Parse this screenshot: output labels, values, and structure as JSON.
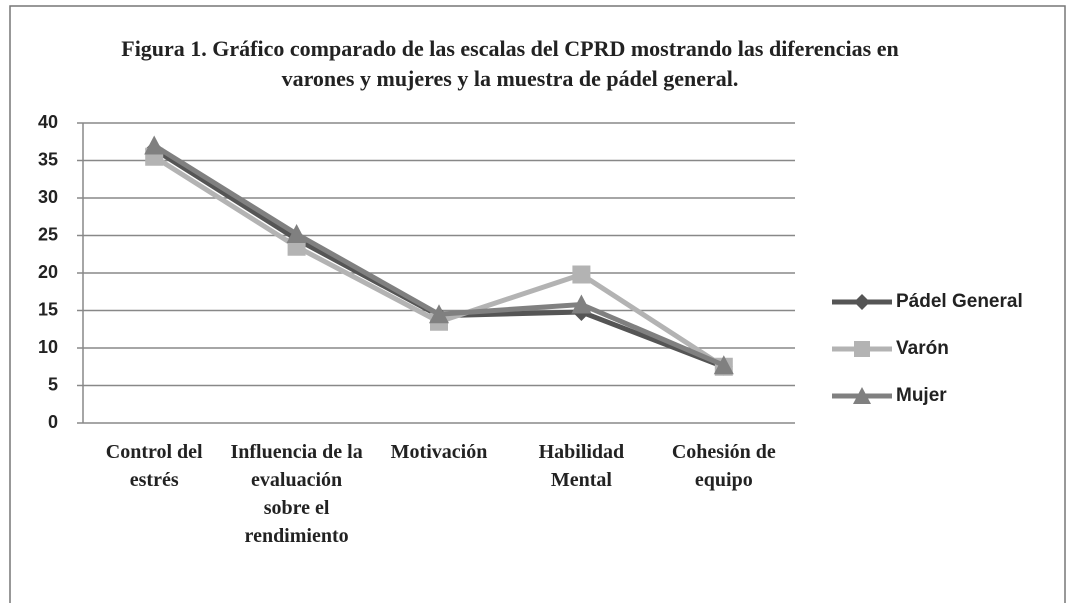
{
  "chart_data": {
    "type": "line",
    "title": "Figura 1. Gráfico comparado de las escalas del CPRD mostrando las diferencias en varones y mujeres y la muestra de pádel general.",
    "categories": [
      "Control del estrés",
      "Influencia de la evaluación sobre el rendimiento",
      "Motivación",
      "Habilidad Mental",
      "Cohesión de equipo"
    ],
    "series": [
      {
        "name": "Pádel General",
        "color": "#555555",
        "marker": "diamond",
        "values": [
          36.5,
          24.5,
          14.3,
          14.8,
          7.5
        ]
      },
      {
        "name": "Varón",
        "color": "#b3b3b3",
        "marker": "square",
        "values": [
          35.5,
          23.5,
          13.5,
          19.8,
          7.5
        ]
      },
      {
        "name": "Mujer",
        "color": "#808080",
        "marker": "triangle",
        "values": [
          37,
          25.2,
          14.5,
          15.8,
          7.7
        ]
      }
    ],
    "ylim": [
      0,
      40
    ],
    "yticks": [
      0,
      5,
      10,
      15,
      20,
      25,
      30,
      35,
      40
    ],
    "grid": true,
    "legend": "right"
  }
}
